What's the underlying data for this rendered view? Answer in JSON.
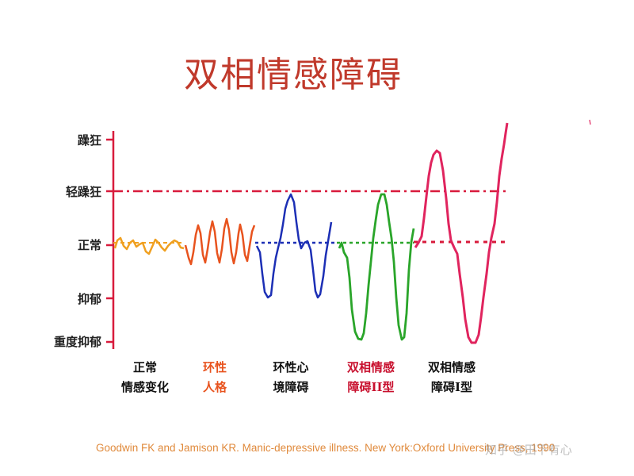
{
  "title": "双相情感障碍",
  "y_levels": [
    "躁狂",
    "轻躁狂",
    "正常",
    "抑郁",
    "重度抑郁"
  ],
  "categories": [
    {
      "line1": "正常",
      "line2": "情感变化",
      "color": "#111111"
    },
    {
      "line1": "环性",
      "line2": "人格",
      "color": "#e8531e"
    },
    {
      "line1": "环性心",
      "line2": "境障碍",
      "color": "#111111"
    },
    {
      "line1": "双相情感",
      "line2": "障碍II型",
      "color": "#c8102e"
    },
    {
      "line1": "双相情感",
      "line2": "障碍I型",
      "color": "#111111"
    }
  ],
  "colors": {
    "axis": "#d81b3c",
    "normal": "#f0a020",
    "cyclothymic_personality": "#e8531e",
    "cyclothymic_disorder": "#1c2fb5",
    "bipolar_ii": "#2aa52a",
    "bipolar_i": "#e0245e"
  },
  "citation": "Goodwin FK and Jamison KR. Manic-depressive illness. New York:Oxford University Press, 1990",
  "watermark": "知乎 @田下有心"
}
